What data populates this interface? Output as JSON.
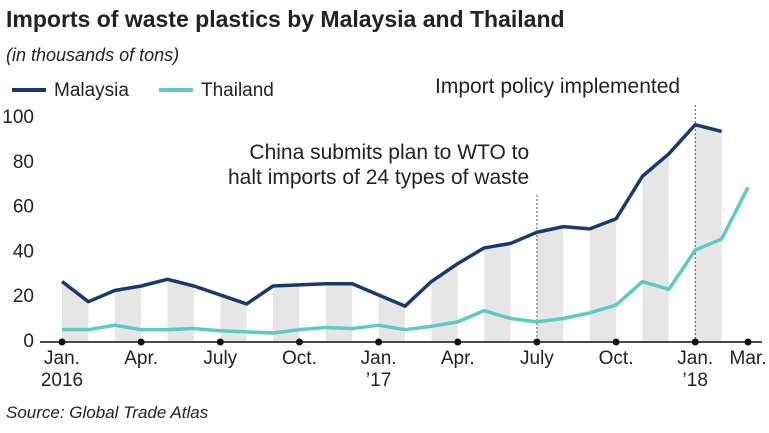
{
  "chart_data": {
    "type": "line",
    "title": "Imports of waste plastics by Malaysia and Thailand",
    "subtitle": "(in thousands of tons)",
    "source": "Source: Global Trade Atlas",
    "categories": [
      "Jan.\n2016",
      null,
      null,
      "Apr.",
      null,
      null,
      "July",
      null,
      null,
      "Oct.",
      null,
      null,
      "Jan.\n’17",
      null,
      null,
      "Apr.",
      null,
      null,
      "July",
      null,
      null,
      "Oct.",
      null,
      null,
      "Jan.\n’18",
      null,
      "Mar."
    ],
    "series": [
      {
        "name": "Malaysia",
        "color": "#1b3a6b",
        "values": [
          27,
          18,
          23,
          25,
          28,
          25,
          21,
          17,
          25,
          25.5,
          26,
          26,
          21,
          16,
          27,
          35,
          42,
          44,
          49,
          51.5,
          50.5,
          55,
          74,
          84,
          97,
          94,
          null
        ]
      },
      {
        "name": "Thailand",
        "color": "#5ccbc0",
        "values": [
          5.5,
          5.5,
          7.5,
          5.5,
          5.5,
          6,
          5,
          4.5,
          4,
          5.5,
          6.5,
          6,
          7.5,
          5.5,
          7,
          9,
          14,
          10.5,
          9,
          10.5,
          13,
          16.5,
          27,
          23.5,
          41,
          46,
          69
        ]
      }
    ],
    "annotations": [
      "China submits plan to WTO to\nhalt imports of 24 types of waste",
      "Import policy implemented"
    ],
    "ylim": [
      0,
      100
    ],
    "yticks": [
      0,
      20,
      40,
      60,
      80,
      100
    ],
    "legend": "top-left"
  }
}
